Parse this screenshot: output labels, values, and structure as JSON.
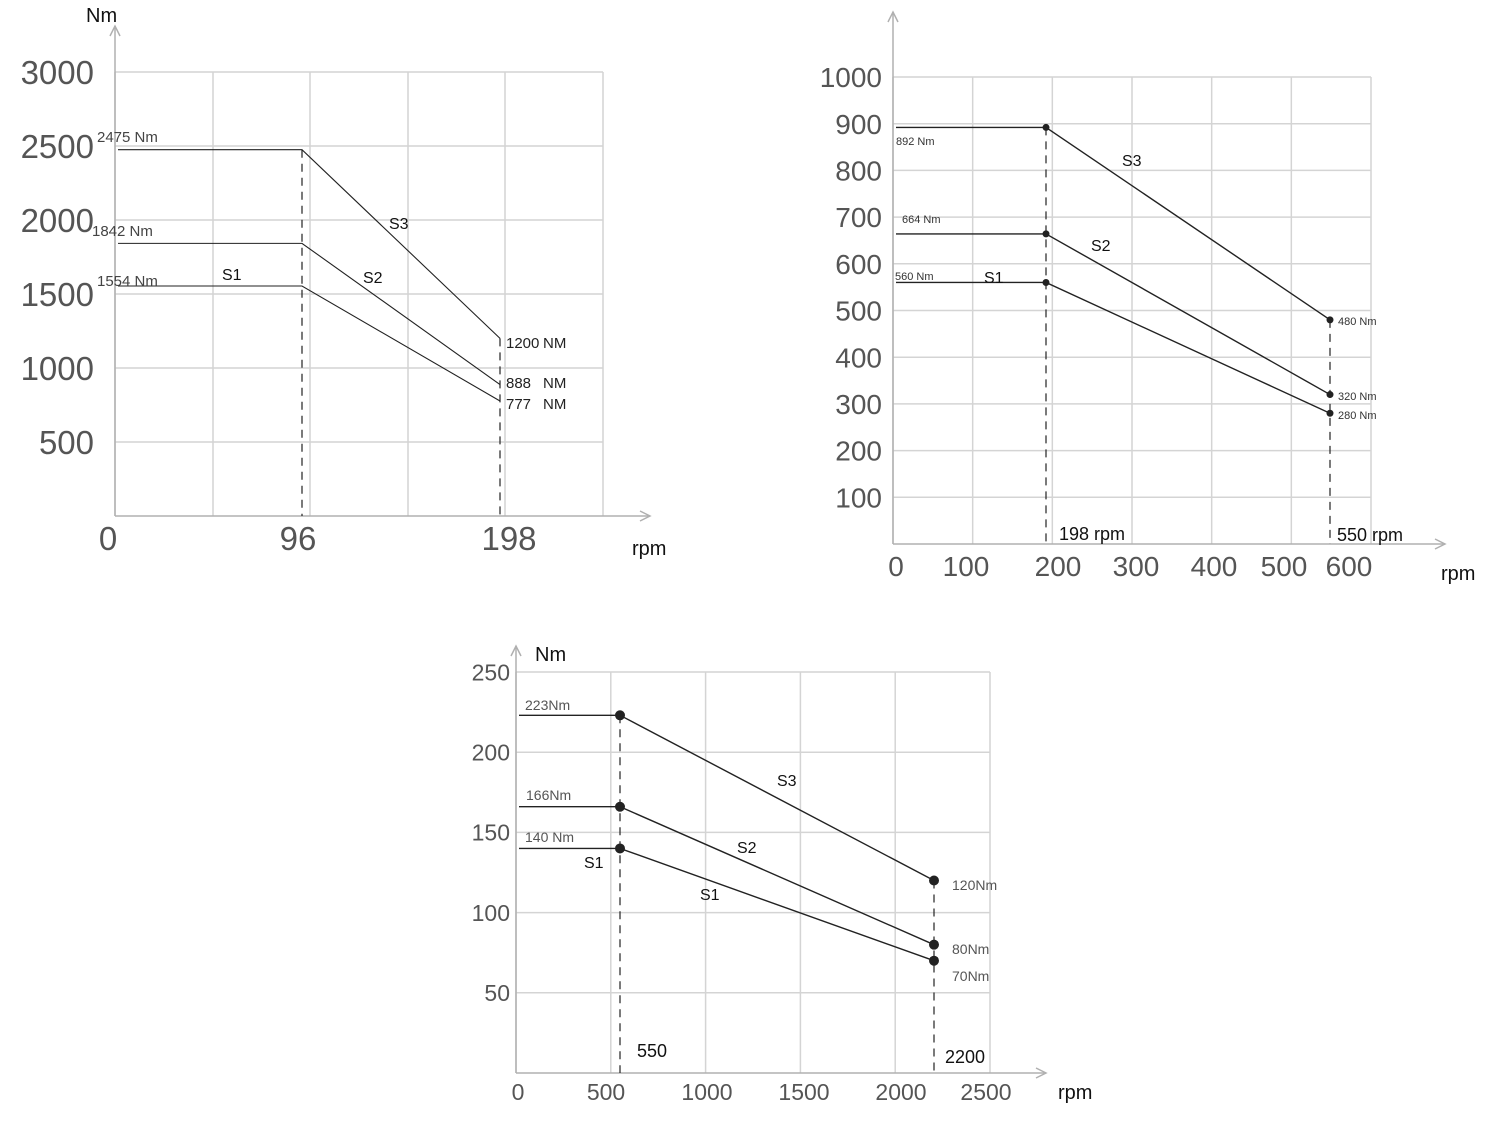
{
  "colors": {
    "grid": "#d4d4d4",
    "axis": "#b0b0b0",
    "line": "#222222",
    "tick": "#555555",
    "label": "#333333",
    "dash": "#222222"
  },
  "chart_data": [
    {
      "type": "line",
      "title": "",
      "ylabel": "Nm",
      "xlabel": "rpm",
      "xlim": [
        0,
        250
      ],
      "ylim": [
        0,
        3000
      ],
      "grid": true,
      "x_tick_labels": [
        {
          "value": 0,
          "label": "0"
        },
        {
          "value": 96,
          "label": "96"
        },
        {
          "value": 198,
          "label": "198"
        }
      ],
      "y_tick_labels": [
        {
          "value": 500,
          "label": "500"
        },
        {
          "value": 1000,
          "label": "1000"
        },
        {
          "value": 1500,
          "label": "1500"
        },
        {
          "value": 2000,
          "label": "2000"
        },
        {
          "value": 2500,
          "label": "2500"
        },
        {
          "value": 3000,
          "label": "3000"
        }
      ],
      "series": [
        {
          "name": "S3",
          "x": [
            0,
            96,
            198
          ],
          "y": [
            2475,
            2475,
            1200
          ]
        },
        {
          "name": "S2",
          "x": [
            0,
            96,
            198
          ],
          "y": [
            1842,
            1842,
            888
          ]
        },
        {
          "name": "S1",
          "x": [
            0,
            96,
            198
          ],
          "y": [
            1554,
            1554,
            777
          ]
        }
      ],
      "annotations": [
        {
          "text": "2475 Nm",
          "x": 0,
          "y": 2475
        },
        {
          "text": "1842 Nm",
          "x": 0,
          "y": 1842
        },
        {
          "text": "1554 Nm",
          "x": 0,
          "y": 1554
        },
        {
          "text": "1200",
          "x": 198,
          "y": 1200
        },
        {
          "text": "NM",
          "x": 198,
          "y": 1200
        },
        {
          "text": "888",
          "x": 198,
          "y": 888
        },
        {
          "text": "NM",
          "x": 198,
          "y": 888
        },
        {
          "text": "777",
          "x": 198,
          "y": 777
        },
        {
          "text": "NM",
          "x": 198,
          "y": 777
        }
      ]
    },
    {
      "type": "line",
      "title": "",
      "ylabel": "",
      "xlabel": "rpm",
      "xlim": [
        0,
        600
      ],
      "ylim": [
        0,
        1000
      ],
      "grid": true,
      "x_tick_labels": [
        {
          "value": 0,
          "label": "0"
        },
        {
          "value": 100,
          "label": "100"
        },
        {
          "value": 200,
          "label": "200"
        },
        {
          "value": 300,
          "label": "300"
        },
        {
          "value": 400,
          "label": "400"
        },
        {
          "value": 500,
          "label": "500"
        },
        {
          "value": 600,
          "label": "600"
        }
      ],
      "y_tick_labels": [
        {
          "value": 100,
          "label": "100"
        },
        {
          "value": 200,
          "label": "200"
        },
        {
          "value": 300,
          "label": "300"
        },
        {
          "value": 400,
          "label": "400"
        },
        {
          "value": 500,
          "label": "500"
        },
        {
          "value": 600,
          "label": "600"
        },
        {
          "value": 700,
          "label": "700"
        },
        {
          "value": 800,
          "label": "800"
        },
        {
          "value": 900,
          "label": "900"
        },
        {
          "value": 1000,
          "label": "1000"
        }
      ],
      "series": [
        {
          "name": "S3",
          "x": [
            0,
            198,
            550
          ],
          "y": [
            892,
            892,
            480
          ]
        },
        {
          "name": "S2",
          "x": [
            0,
            198,
            550
          ],
          "y": [
            664,
            664,
            320
          ]
        },
        {
          "name": "S1",
          "x": [
            0,
            198,
            550
          ],
          "y": [
            560,
            560,
            280
          ]
        }
      ],
      "annotations": [
        {
          "text": "892 Nm",
          "x": 0,
          "y": 892
        },
        {
          "text": "664 Nm",
          "x": 0,
          "y": 664
        },
        {
          "text": "560 Nm",
          "x": 0,
          "y": 560
        },
        {
          "text": "480 Nm",
          "x": 550,
          "y": 480
        },
        {
          "text": "320 Nm",
          "x": 550,
          "y": 320
        },
        {
          "text": "280 Nm",
          "x": 550,
          "y": 280
        },
        {
          "text": "198 rpm",
          "x": 198,
          "y": 0
        },
        {
          "text": "550 rpm",
          "x": 550,
          "y": 0
        }
      ]
    },
    {
      "type": "line",
      "title": "",
      "ylabel": "Nm",
      "xlabel": "rpm",
      "xlim": [
        0,
        2500
      ],
      "ylim": [
        0,
        250
      ],
      "grid": true,
      "x_tick_labels": [
        {
          "value": 0,
          "label": "0"
        },
        {
          "value": 500,
          "label": "500"
        },
        {
          "value": 1000,
          "label": "1000"
        },
        {
          "value": 1500,
          "label": "1500"
        },
        {
          "value": 2000,
          "label": "2000"
        },
        {
          "value": 2500,
          "label": "2500"
        }
      ],
      "y_tick_labels": [
        {
          "value": 50,
          "label": "50"
        },
        {
          "value": 100,
          "label": "100"
        },
        {
          "value": 150,
          "label": "150"
        },
        {
          "value": 200,
          "label": "200"
        },
        {
          "value": 250,
          "label": "250"
        }
      ],
      "series": [
        {
          "name": "S3",
          "x": [
            0,
            550,
            2200
          ],
          "y": [
            223,
            223,
            120
          ]
        },
        {
          "name": "S2",
          "x": [
            0,
            550,
            2200
          ],
          "y": [
            166,
            166,
            80
          ]
        },
        {
          "name": "S1",
          "x": [
            0,
            550,
            2200
          ],
          "y": [
            140,
            140,
            70
          ]
        }
      ],
      "annotations": [
        {
          "text": "223Nm",
          "x": 0,
          "y": 223
        },
        {
          "text": "166Nm",
          "x": 0,
          "y": 166
        },
        {
          "text": "140 Nm",
          "x": 0,
          "y": 140
        },
        {
          "text": "120Nm",
          "x": 2200,
          "y": 120
        },
        {
          "text": "80Nm",
          "x": 2200,
          "y": 80
        },
        {
          "text": "70Nm",
          "x": 2200,
          "y": 70
        },
        {
          "text": "550",
          "x": 550,
          "y": 0
        },
        {
          "text": "2200",
          "x": 2200,
          "y": 0
        },
        {
          "text": "S1",
          "x": 550,
          "y": 140
        }
      ]
    }
  ]
}
